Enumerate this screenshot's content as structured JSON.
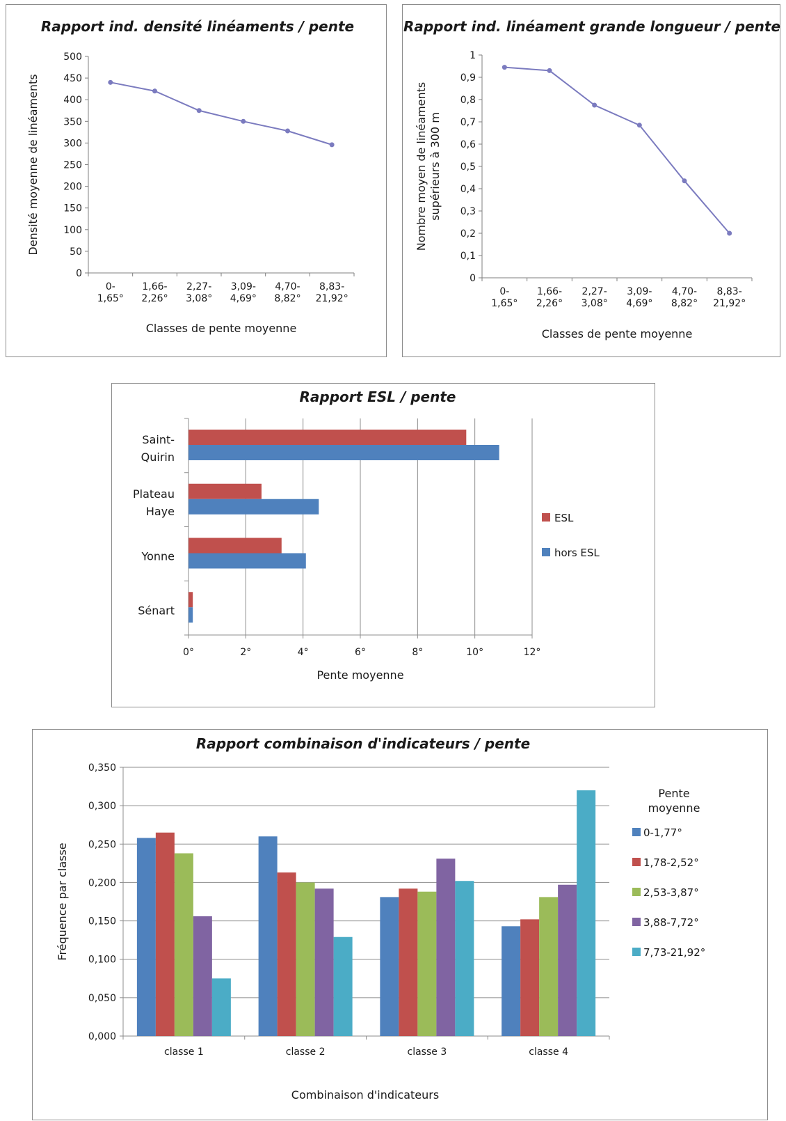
{
  "chart_data": [
    {
      "type": "line",
      "title": "Rapport ind. densité linéaments / pente",
      "xlabel": "Classes de pente moyenne",
      "ylabel": "Densité moyenne de linéaments",
      "categories": [
        [
          "0-",
          "1,65°"
        ],
        [
          "1,66-",
          "2,26°"
        ],
        [
          "2,27-",
          "3,08°"
        ],
        [
          "3,09-",
          "4,69°"
        ],
        [
          "4,70-",
          "8,82°"
        ],
        [
          "8,83-",
          "21,92°"
        ]
      ],
      "values": [
        440,
        420,
        375,
        350,
        328,
        296
      ],
      "ylim": [
        0,
        500
      ],
      "yticks": [
        "0",
        "50",
        "100",
        "150",
        "200",
        "250",
        "300",
        "350",
        "400",
        "450",
        "500"
      ],
      "grid": false,
      "color": "#7b7bbf"
    },
    {
      "type": "line",
      "title": "Rapport ind. linéament grande longueur / pente",
      "xlabel": "Classes de pente moyenne",
      "ylabel": [
        "Nombre moyen de linéaments",
        "supérieurs à 300 m"
      ],
      "categories": [
        [
          "0-",
          "1,65°"
        ],
        [
          "1,66-",
          "2,26°"
        ],
        [
          "2,27-",
          "3,08°"
        ],
        [
          "3,09-",
          "4,69°"
        ],
        [
          "4,70-",
          "8,82°"
        ],
        [
          "8,83-",
          "21,92°"
        ]
      ],
      "values": [
        0.945,
        0.93,
        0.775,
        0.685,
        0.435,
        0.2
      ],
      "ylim": [
        0,
        1
      ],
      "yticks": [
        "0",
        "0,1",
        "0,2",
        "0,3",
        "0,4",
        "0,5",
        "0,6",
        "0,7",
        "0,8",
        "0,9",
        "1"
      ],
      "grid": false,
      "color": "#7b7bbf"
    },
    {
      "type": "bar",
      "orientation": "horizontal",
      "title": "Rapport ESL / pente",
      "xlabel": "Pente moyenne",
      "categories": [
        [
          "Saint-",
          "Quirin"
        ],
        [
          "Plateau",
          "Haye"
        ],
        [
          "Yonne"
        ],
        [
          "Sénart"
        ]
      ],
      "series": [
        {
          "name": "ESL",
          "values": [
            9.7,
            2.55,
            3.25,
            0.15
          ],
          "color": "#c0504d"
        },
        {
          "name": "hors ESL",
          "values": [
            10.85,
            4.55,
            4.1,
            0.15
          ],
          "color": "#4f81bd"
        }
      ],
      "xlim": [
        0,
        12
      ],
      "xticks": [
        "0°",
        "2°",
        "4°",
        "6°",
        "8°",
        "10°",
        "12°"
      ],
      "grid": true,
      "legend": "right"
    },
    {
      "type": "bar",
      "title": "Rapport combinaison d'indicateurs / pente",
      "xlabel": "Combinaison d'indicateurs",
      "ylabel": "Fréquence par classe",
      "categories": [
        "classe 1",
        "classe 2",
        "classe 3",
        "classe 4"
      ],
      "legend_title": [
        "Pente",
        "moyenne"
      ],
      "series": [
        {
          "name": "0-1,77°",
          "values": [
            0.258,
            0.26,
            0.181,
            0.143
          ],
          "color": "#4f81bd"
        },
        {
          "name": "1,78-2,52°",
          "values": [
            0.265,
            0.213,
            0.192,
            0.152
          ],
          "color": "#c0504d"
        },
        {
          "name": "2,53-3,87°",
          "values": [
            0.238,
            0.2,
            0.188,
            0.181
          ],
          "color": "#9bbb59"
        },
        {
          "name": "3,88-7,72°",
          "values": [
            0.156,
            0.192,
            0.231,
            0.197
          ],
          "color": "#8064a2"
        },
        {
          "name": "7,73-21,92°",
          "values": [
            0.075,
            0.129,
            0.202,
            0.32
          ],
          "color": "#4bacc6"
        }
      ],
      "ylim": [
        0,
        0.35
      ],
      "yticks": [
        "0,000",
        "0,050",
        "0,100",
        "0,150",
        "0,200",
        "0,250",
        "0,300",
        "0,350"
      ],
      "grid": true,
      "legend": "right"
    }
  ]
}
